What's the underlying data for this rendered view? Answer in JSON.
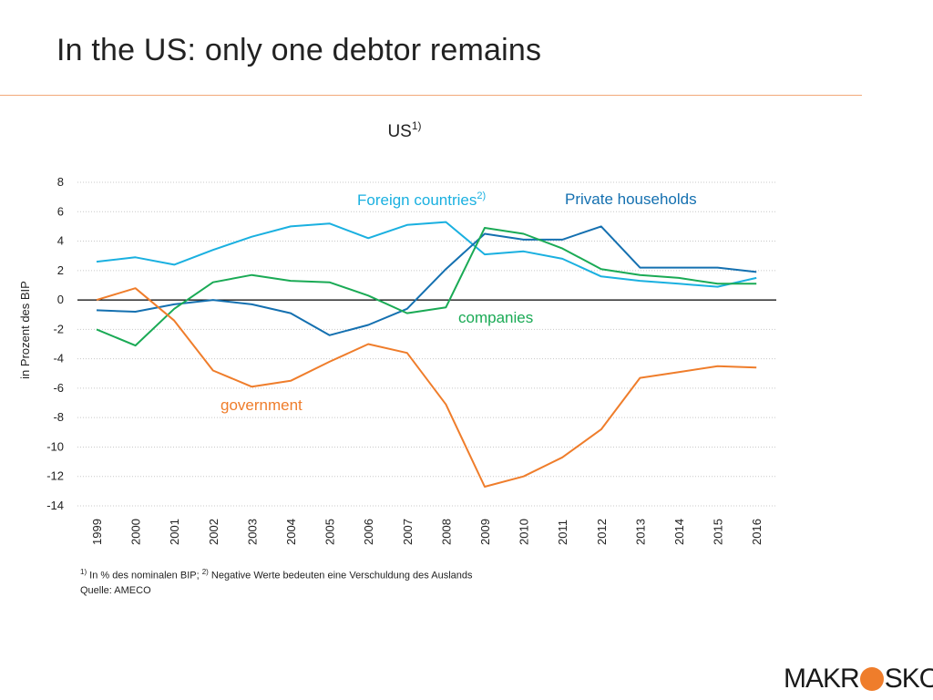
{
  "slide": {
    "title": "In the US: only one debtor remains"
  },
  "logo": {
    "text_left": "MAKR",
    "text_right": "SKOP",
    "dot_color": "#ef7d2b"
  },
  "footnotes": {
    "note1_marker": "1)",
    "note1_text": " In % des nominalen BIP; ",
    "note2_marker": "2)",
    "note2_text": " Negative Werte bedeuten eine Verschuldung des Auslands",
    "source": "Quelle: AMECO"
  },
  "chart_data": {
    "type": "line",
    "title": "US",
    "title_sup": "1)",
    "ylabel": "in Prozent des BIP",
    "xlabel": "",
    "ylim": [
      -14,
      8
    ],
    "yticks": [
      8,
      6,
      4,
      2,
      0,
      -2,
      -4,
      -6,
      -8,
      -10,
      -12,
      -14
    ],
    "grid": true,
    "legend": "inline labels",
    "x": [
      "1999",
      "2000",
      "2001",
      "2002",
      "2003",
      "2004",
      "2005",
      "2006",
      "2007",
      "2008",
      "2009",
      "2010",
      "2011",
      "2012",
      "2013",
      "2014",
      "2015",
      "2016"
    ],
    "series": [
      {
        "name": "Foreign countries",
        "name_sup": "2)",
        "color": "#1ab0e0",
        "values": [
          2.6,
          2.9,
          2.4,
          3.4,
          4.3,
          5.0,
          5.2,
          4.2,
          5.1,
          5.3,
          3.1,
          3.3,
          2.8,
          1.6,
          1.3,
          1.1,
          0.9,
          1.5
        ]
      },
      {
        "name": "Private households",
        "name_sup": "",
        "color": "#1470b0",
        "values": [
          -0.7,
          -0.8,
          -0.3,
          0.0,
          -0.3,
          -0.9,
          -2.4,
          -1.7,
          -0.6,
          2.1,
          4.5,
          4.1,
          4.1,
          5.0,
          2.2,
          2.2,
          2.2,
          1.9
        ]
      },
      {
        "name": "companies",
        "name_sup": "",
        "color": "#1aaa55",
        "values": [
          -2.0,
          -3.1,
          -0.6,
          1.2,
          1.7,
          1.3,
          1.2,
          0.3,
          -0.9,
          -0.5,
          4.9,
          4.5,
          3.5,
          2.1,
          1.7,
          1.5,
          1.1,
          1.1
        ]
      },
      {
        "name": "government",
        "name_sup": "",
        "color": "#ef7d2b",
        "values": [
          0.0,
          0.8,
          -1.4,
          -4.8,
          -5.9,
          -5.5,
          -4.2,
          -3.0,
          -3.6,
          -7.1,
          -12.7,
          -12.0,
          -10.7,
          -8.8,
          -5.3,
          -4.9,
          -4.5,
          -4.6
        ]
      }
    ]
  }
}
